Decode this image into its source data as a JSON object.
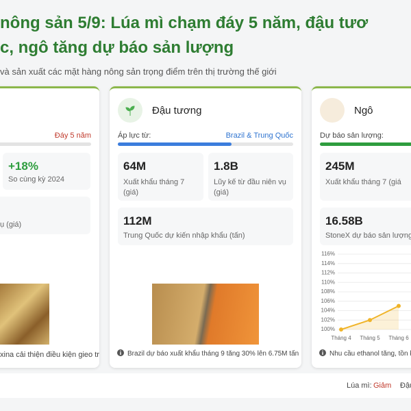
{
  "header": {
    "title_line1": "nông sản 5/9: Lúa mì chạm đáy 5 năm, đậu tươ",
    "title_line2": "c, ngô tăng dự báo sản lượng",
    "subtitle": "và sản xuất các mặt hàng nông sản trọng điểm trên thị trường thế giới"
  },
  "cards": [
    {
      "tag": "Đáy 5 năm",
      "stats": [
        {
          "value": "+18%",
          "label": "So cùng kỳ 2024"
        },
        {
          "label": "ụ (giá)"
        }
      ],
      "footer": "xina cải thiện điều kiện gieo trồng"
    },
    {
      "name": "Đậu tương",
      "bar_label": "Áp lực từ:",
      "bar_tag": "Brazil & Trung Quốc",
      "stats": [
        {
          "value": "64M",
          "label": "Xuất khẩu tháng 7 (giá)"
        },
        {
          "value": "1.8B",
          "label": "Lũy kế từ đầu niên vụ (giá)"
        },
        {
          "value": "112M",
          "label": "Trung Quốc dự kiến nhập khẩu (tấn)"
        }
      ],
      "footer": "Brazil dự báo xuất khẩu tháng 9 tăng 30% lên 6.75M tấn"
    },
    {
      "name": "Ngô",
      "bar_label": "Dự báo sản lượng:",
      "stats": [
        {
          "value": "245M",
          "label": "Xuất khẩu tháng 7 (giá"
        },
        {
          "value": "16.58B",
          "label": "StoneX dự báo sản lượng ("
        }
      ],
      "footer": "Nhu cầu ethanol tăng, tồn kho"
    }
  ],
  "chart_data": {
    "type": "line",
    "categories": [
      "Tháng 4",
      "Tháng 5",
      "Tháng 6"
    ],
    "values": [
      100,
      102,
      105
    ],
    "color": "#f0b429",
    "ylim": [
      100,
      116
    ],
    "yticks": [
      {
        "value": 100,
        "label": "100%"
      },
      {
        "value": 102,
        "label": "102%"
      },
      {
        "value": 104,
        "label": "104%"
      },
      {
        "value": 106,
        "label": "106%"
      },
      {
        "value": 108,
        "label": "108%"
      },
      {
        "value": 110,
        "label": "110%"
      },
      {
        "value": 112,
        "label": "112%"
      },
      {
        "value": 114,
        "label": "114%"
      },
      {
        "value": 116,
        "label": "116%"
      }
    ],
    "grid": true
  },
  "footer_bar": {
    "wheat_label": "Lúa mì:",
    "wheat_status": "Giảm",
    "soy_label": "Đậu"
  }
}
